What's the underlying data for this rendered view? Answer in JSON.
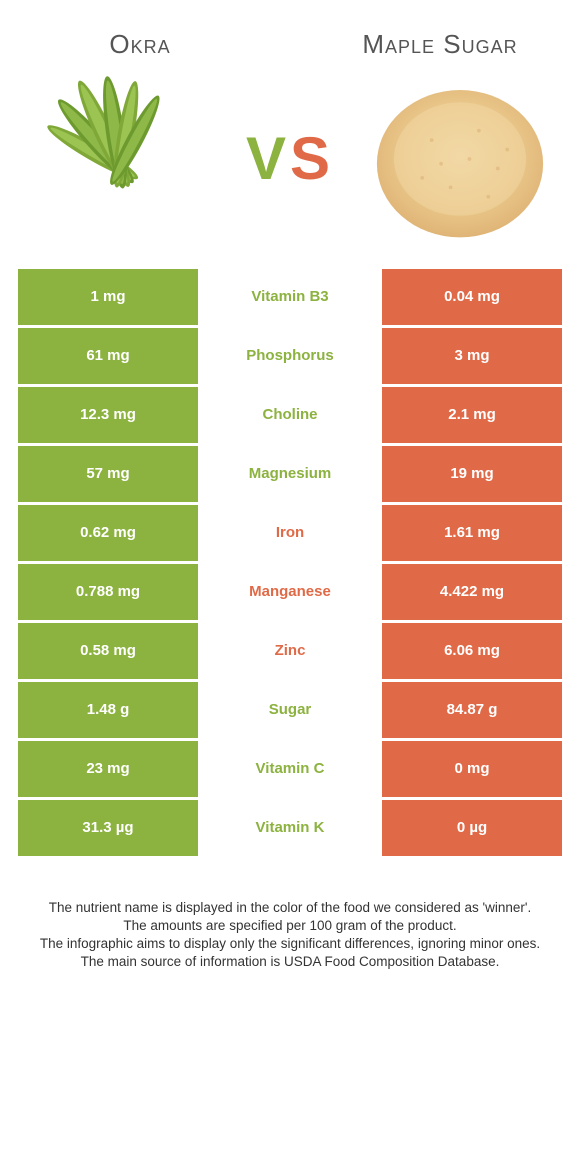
{
  "colors": {
    "green": "#8cb23f",
    "orange": "#e06a47",
    "white": "#ffffff",
    "text": "#333333",
    "title": "#555555"
  },
  "typography": {
    "title_fontsize": 26,
    "vs_fontsize": 60,
    "cell_fontsize": 15,
    "footer_fontsize": 13.5
  },
  "left_food": {
    "title": "Okra",
    "color": "green"
  },
  "right_food": {
    "title": "Maple Sugar",
    "color": "orange"
  },
  "vs_label": {
    "v": "V",
    "s": "S"
  },
  "rows": [
    {
      "left": "1 mg",
      "label": "Vitamin B3",
      "right": "0.04 mg",
      "winner": "green"
    },
    {
      "left": "61 mg",
      "label": "Phosphorus",
      "right": "3 mg",
      "winner": "green"
    },
    {
      "left": "12.3 mg",
      "label": "Choline",
      "right": "2.1 mg",
      "winner": "green"
    },
    {
      "left": "57 mg",
      "label": "Magnesium",
      "right": "19 mg",
      "winner": "green"
    },
    {
      "left": "0.62 mg",
      "label": "Iron",
      "right": "1.61 mg",
      "winner": "orange"
    },
    {
      "left": "0.788 mg",
      "label": "Manganese",
      "right": "4.422 mg",
      "winner": "orange"
    },
    {
      "left": "0.58 mg",
      "label": "Zinc",
      "right": "6.06 mg",
      "winner": "orange"
    },
    {
      "left": "1.48 g",
      "label": "Sugar",
      "right": "84.87 g",
      "winner": "green"
    },
    {
      "left": "23 mg",
      "label": "Vitamin C",
      "right": "0 mg",
      "winner": "green"
    },
    {
      "left": "31.3 µg",
      "label": "Vitamin K",
      "right": "0 µg",
      "winner": "green"
    }
  ],
  "footer": {
    "line1": "The nutrient name is displayed in the color of the food we considered as 'winner'.",
    "line2": "The amounts are specified per 100 gram of the product.",
    "line3": "The infographic aims to display only the significant differences, ignoring minor ones.",
    "line4": "The main source of information is USDA Food Composition Database."
  }
}
